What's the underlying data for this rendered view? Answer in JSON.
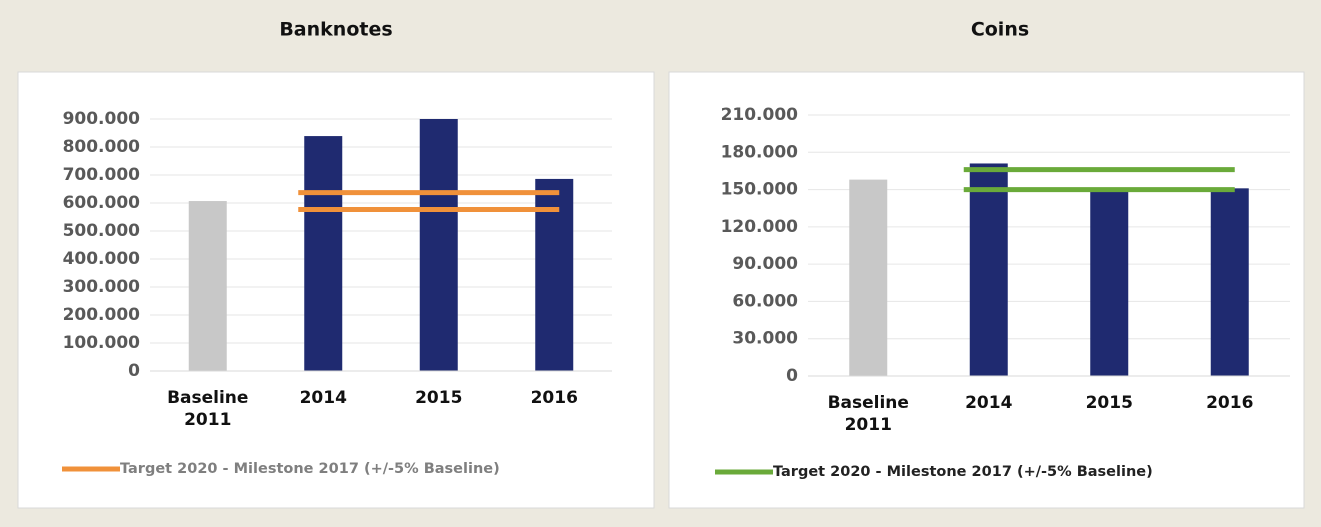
{
  "chart_data": [
    {
      "type": "bar",
      "title": "Banknotes",
      "categories": [
        "Baseline 2011",
        "2014",
        "2015",
        "2016"
      ],
      "values": [
        607000,
        839000,
        900000,
        686000
      ],
      "colors": [
        "#c8c8c8",
        "#1f2a70",
        "#1f2a70",
        "#1f2a70"
      ],
      "ylim": [
        0,
        900000
      ],
      "yticks": [
        0,
        {
          "value": 100000,
          "label": "100.000"
        },
        {
          "value": 200000,
          "label": "200.000"
        },
        {
          "value": 300000,
          "label": "300.000"
        },
        {
          "value": 400000,
          "label": "400.000"
        },
        {
          "value": 500000,
          "label": "500.000"
        },
        {
          "value": 600000,
          "label": "600.000"
        },
        {
          "value": 700000,
          "label": "700.000"
        },
        {
          "value": 800000,
          "label": "800.000"
        },
        {
          "value": 900000,
          "label": "900.000"
        }
      ],
      "grid": true,
      "target": {
        "name": "Target 2020 - Milestone 2017 (+/-5% Baseline)",
        "color": "#f0913a",
        "values": [
          637000,
          577000
        ]
      }
    },
    {
      "type": "bar",
      "title": "Coins",
      "categories": [
        "Baseline 2011",
        "2014",
        "2015",
        "2016"
      ],
      "values": [
        158000,
        171000,
        150000,
        151000
      ],
      "colors": [
        "#c8c8c8",
        "#1f2a70",
        "#1f2a70",
        "#1f2a70"
      ],
      "ylim": [
        0,
        210000
      ],
      "yticks": [
        0,
        {
          "value": 30000,
          "label": "30.000"
        },
        {
          "value": 60000,
          "label": "60.000"
        },
        {
          "value": 90000,
          "label": "90.000"
        },
        {
          "value": 120000,
          "label": "120.000"
        },
        {
          "value": 150000,
          "label": "150.000"
        },
        {
          "value": 180000,
          "label": "180.000"
        },
        {
          "value": 210000,
          "label": "210.000"
        }
      ],
      "grid": true,
      "target": {
        "name": "Target 2020 - Milestone 2017 (+/-5% Baseline)",
        "color": "#6aaa3a",
        "values": [
          166000,
          150000
        ]
      }
    }
  ]
}
